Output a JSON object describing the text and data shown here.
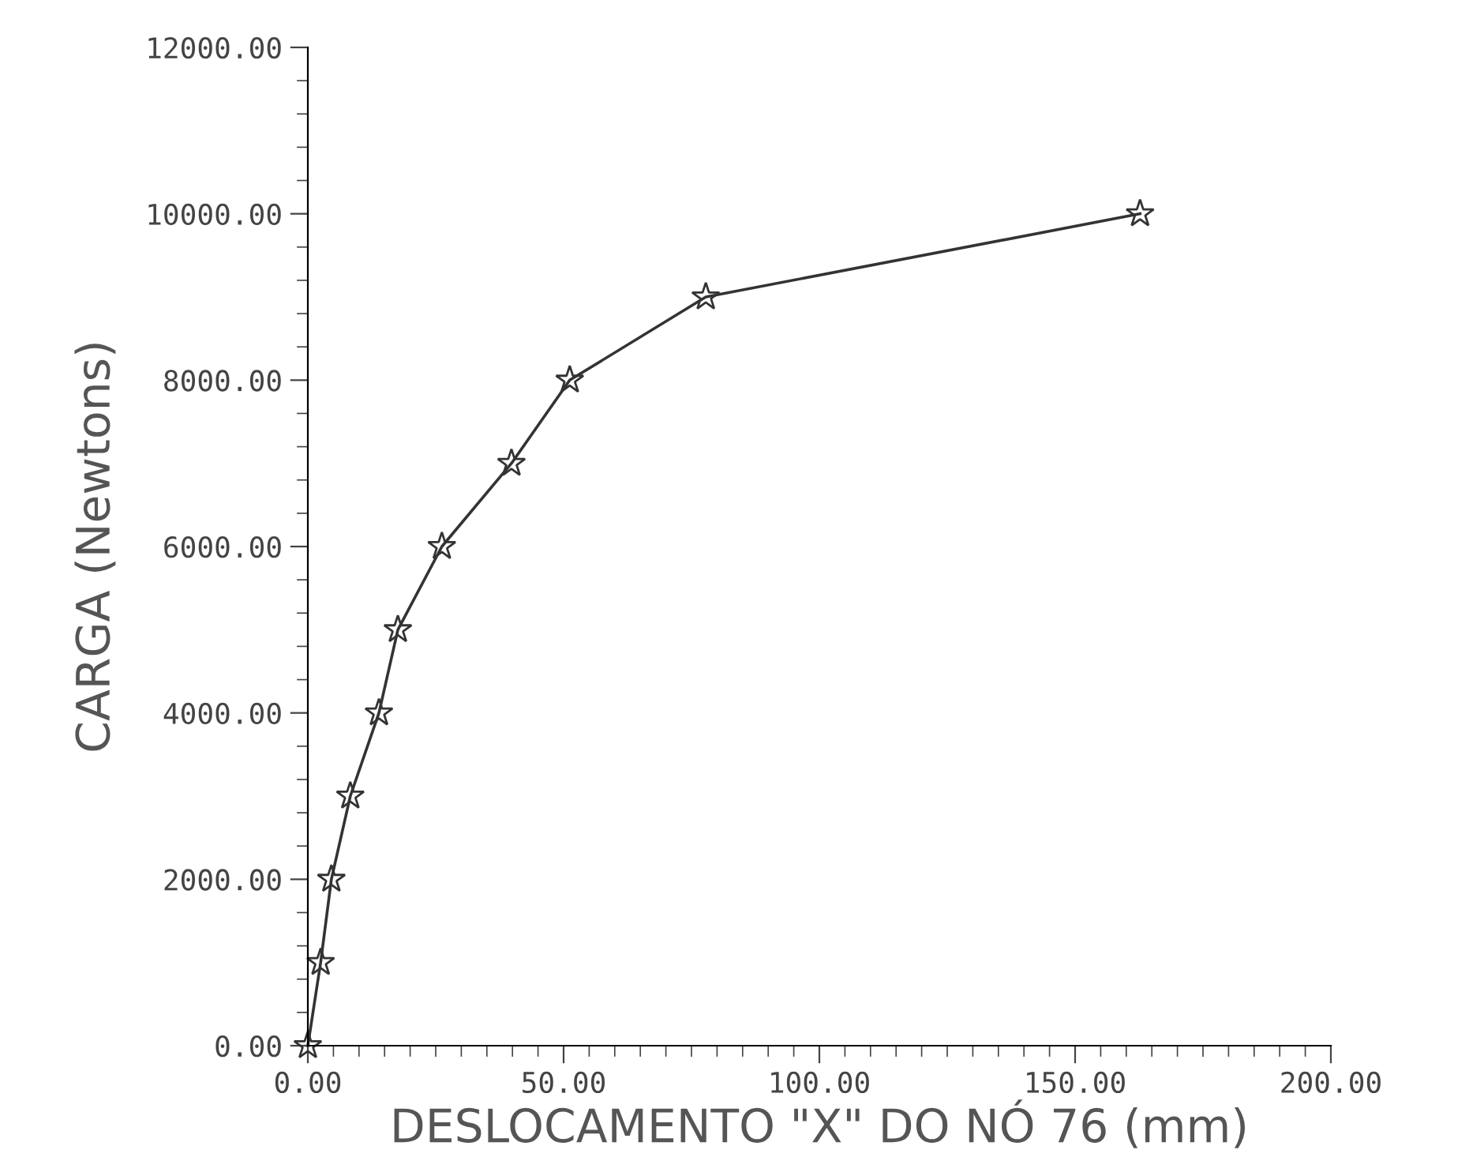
{
  "chart_data": {
    "type": "line",
    "xlabel": "DESLOCAMENTO \"X\" DO NÓ 76 (mm)",
    "ylabel": "CARGA (Newtons)",
    "x": [
      0,
      2.5,
      4.6,
      8.3,
      13.9,
      17.6,
      26.2,
      39.8,
      51.2,
      77.8,
      162.7
    ],
    "series": [
      {
        "color": "#333333",
        "values": [
          0,
          1000,
          2000,
          3000,
          4000,
          5000,
          6000,
          7000,
          8000,
          9000,
          10000
        ]
      }
    ],
    "marker": "star",
    "line_style": "solid",
    "grid": false,
    "xlim": [
      0,
      200
    ],
    "ylim": [
      0,
      12000
    ],
    "xticks": [
      {
        "value": 0,
        "label": "0.00"
      },
      {
        "value": 50,
        "label": "50.00"
      },
      {
        "value": 100,
        "label": "100.00"
      },
      {
        "value": 150,
        "label": "150.00"
      },
      {
        "value": 200,
        "label": "200.00"
      }
    ],
    "yticks": [
      {
        "value": 0,
        "label": "0.00"
      },
      {
        "value": 2000,
        "label": "2000.00"
      },
      {
        "value": 4000,
        "label": "4000.00"
      },
      {
        "value": 6000,
        "label": "6000.00"
      },
      {
        "value": 8000,
        "label": "8000.00"
      },
      {
        "value": 10000,
        "label": "10000.00"
      },
      {
        "value": 12000,
        "label": "12000.00"
      }
    ]
  }
}
